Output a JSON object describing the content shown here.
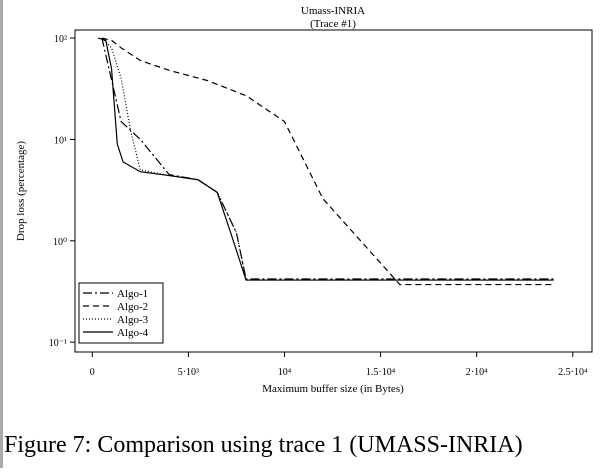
{
  "chart_data": {
    "type": "line",
    "title": "Umass-INRIA",
    "subtitle": "(Trace #1)",
    "x_label": "Maximum buffer size (in Bytes)",
    "y_label": "Drop loss (percentage)",
    "caption": "Figure 7: Comparison using trace 1 (UMASS-INRIA)",
    "log_y": true,
    "legend": "lower left",
    "xlim": [
      -900,
      26000
    ],
    "ylim": [
      0.08,
      120
    ],
    "xticks": [
      0,
      {
        "value": 5000,
        "label": "5·10³"
      },
      {
        "value": 10000,
        "label": "10⁴"
      },
      {
        "value": 15000,
        "label": "1.5·10⁴"
      },
      {
        "value": 20000,
        "label": "2·10⁴"
      },
      {
        "value": 25000,
        "label": "2.5·10⁴"
      }
    ],
    "yticks": [
      {
        "value": 0.1,
        "label": "10⁻¹"
      },
      {
        "value": 1,
        "label": "10⁰"
      },
      {
        "value": 10,
        "label": "10¹"
      },
      {
        "value": 100,
        "label": "10²"
      }
    ],
    "series": [
      {
        "name": "Algo-1",
        "color": "#000000",
        "dash": "9,3,2,3",
        "x": [
          500,
          1500,
          2500,
          4000,
          5500,
          6500,
          7500,
          8000,
          16000,
          24000
        ],
        "values": [
          100,
          15,
          10,
          4.5,
          4,
          3,
          1.2,
          0.42,
          0.42,
          0.42
        ]
      },
      {
        "name": "Algo-2",
        "color": "#000000",
        "dash": "6,4",
        "x": [
          500,
          1000,
          1500,
          2500,
          4000,
          6000,
          8000,
          10000,
          12000,
          16000,
          24000
        ],
        "values": [
          100,
          95,
          80,
          60,
          48,
          38,
          27,
          15,
          2.6,
          0.37,
          0.37
        ]
      },
      {
        "name": "Algo-3",
        "color": "#000000",
        "dash": "1,2",
        "x": [
          500,
          1000,
          1500,
          2000,
          2500,
          4000,
          5500,
          6500,
          7500,
          8000,
          16000,
          24000
        ],
        "values": [
          100,
          80,
          40,
          12,
          5,
          4.4,
          4,
          3,
          1.2,
          0.41,
          0.41,
          0.41
        ]
      },
      {
        "name": "Algo-4",
        "color": "#000000",
        "dash": "none",
        "x": [
          300,
          700,
          1000,
          1300,
          1600,
          2500,
          4000,
          5500,
          6500,
          7200,
          8000,
          10000,
          12000,
          16000,
          24000
        ],
        "values": [
          100,
          95,
          50,
          9,
          6,
          4.8,
          4.4,
          4,
          3,
          1.2,
          0.41,
          0.41,
          0.41,
          0.41,
          0.41
        ]
      }
    ]
  }
}
